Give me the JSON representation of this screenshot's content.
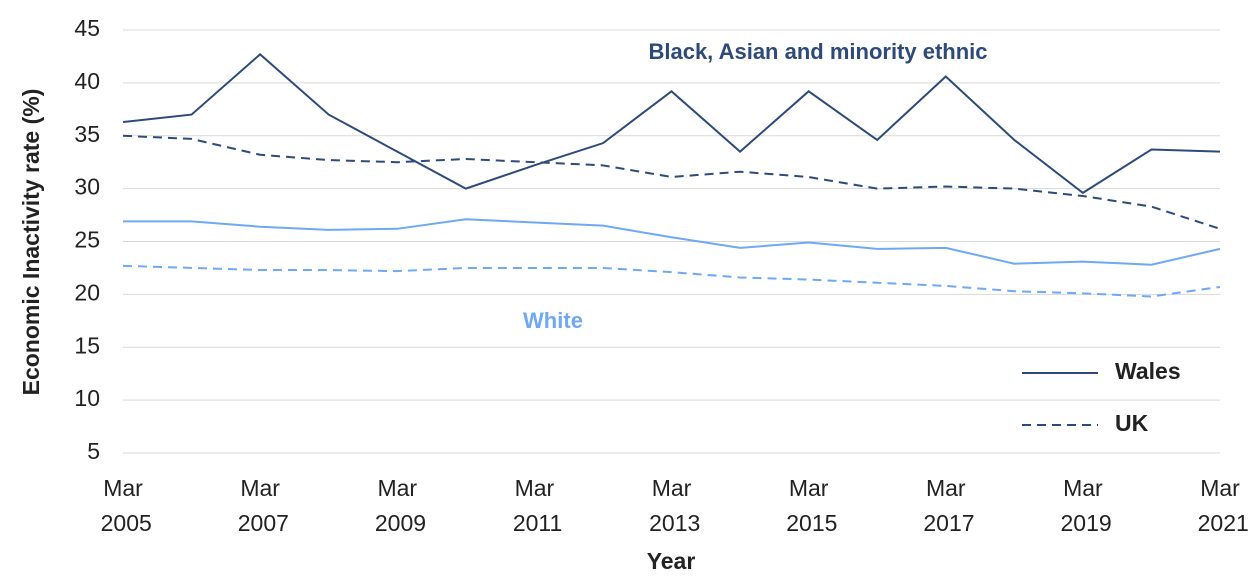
{
  "chart_data": {
    "type": "line",
    "y_axis_label": "Economic Inactivity rate (%)",
    "x_axis_label": "Year",
    "categories": [
      "Mar 2005",
      null,
      "Mar 2007",
      null,
      "Mar 2009",
      null,
      "Mar 2011",
      null,
      "Mar 2013",
      null,
      "Mar 2015",
      null,
      "Mar 2017",
      null,
      "Mar 2019",
      null,
      "Mar 2021"
    ],
    "ylim": [
      5,
      45
    ],
    "yticks": [
      5,
      10,
      15,
      20,
      25,
      30,
      35,
      40,
      45
    ],
    "grid": true,
    "series": [
      {
        "color": "#2e4a7a",
        "style": "solid",
        "values": [
          36.3,
          37,
          42.7,
          37,
          33.5,
          30,
          32.2,
          34.3,
          39.2,
          33.5,
          39.2,
          34.6,
          40.6,
          34.6,
          29.6,
          33.7,
          33.5
        ]
      },
      {
        "color": "#2e4a7a",
        "style": "dashed",
        "values": [
          35,
          34.7,
          33.2,
          32.7,
          32.5,
          32.8,
          32.5,
          32.2,
          31.1,
          31.6,
          31.1,
          30,
          30.2,
          30,
          29.3,
          28.3,
          26.2
        ]
      },
      {
        "color": "#6fa8f5",
        "style": "solid",
        "values": [
          26.9,
          26.9,
          26.4,
          26.1,
          26.2,
          27.1,
          26.8,
          26.5,
          25.4,
          24.4,
          24.9,
          24.3,
          24.4,
          22.9,
          23.1,
          22.8,
          24.3
        ]
      },
      {
        "color": "#6fa8f5",
        "style": "dashed",
        "values": [
          22.7,
          22.5,
          22.3,
          22.3,
          22.2,
          22.5,
          22.5,
          22.5,
          22.1,
          21.6,
          21.4,
          21.1,
          20.8,
          20.3,
          20.1,
          19.8,
          20.7
        ]
      }
    ],
    "legend": [
      {
        "label": "Wales",
        "style": "solid"
      },
      {
        "label": "UK",
        "style": "dashed"
      }
    ],
    "annotations": [
      {
        "text": "Black, Asian and minority ethnic",
        "color": "#2e4a7a"
      },
      {
        "text": "White",
        "color": "#6fa8f5"
      }
    ]
  }
}
